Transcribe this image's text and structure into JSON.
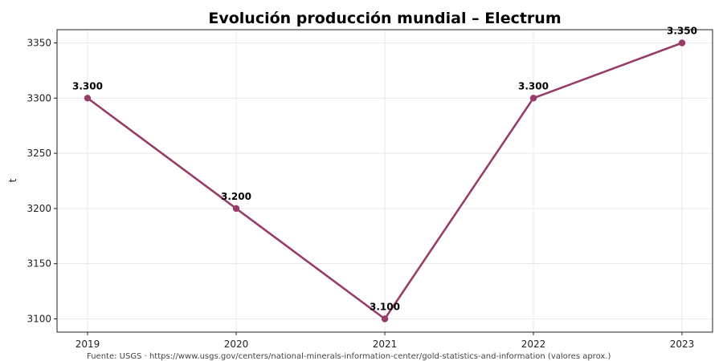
{
  "chart_data": {
    "type": "line",
    "title": "Evolución producción mundial – Electrum",
    "xlabel": "",
    "ylabel": "t",
    "categories": [
      "2019",
      "2020",
      "2021",
      "2022",
      "2023"
    ],
    "series": [
      {
        "values": [
          3300,
          3200,
          3100,
          3300,
          3350
        ],
        "data_labels": [
          "3.300",
          "3.200",
          "3.100",
          "3.300",
          "3.350"
        ],
        "color": "#963d6a"
      }
    ],
    "ylim": [
      3088,
      3362
    ],
    "yticks": [
      3100,
      3150,
      3200,
      3250,
      3300,
      3350
    ],
    "ytick_labels": [
      "3100",
      "3150",
      "3200",
      "3250",
      "3300",
      "3350"
    ],
    "grid": true,
    "source": "Fuente: USGS · https://www.usgs.gov/centers/national-minerals-information-center/gold-statistics-and-information (valores aprox.)"
  }
}
